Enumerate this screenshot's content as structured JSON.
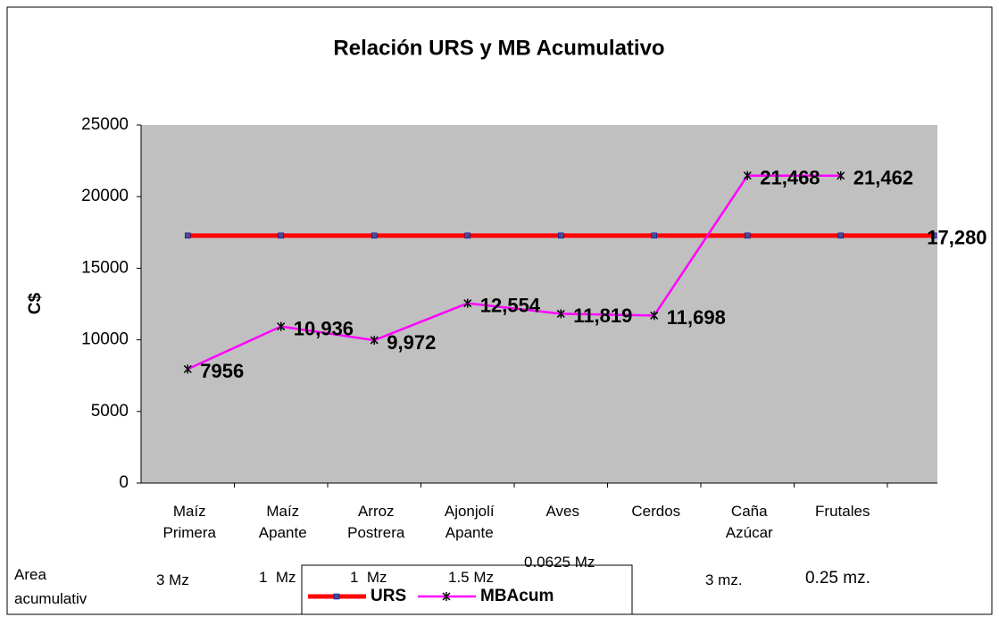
{
  "chart_data": {
    "type": "line",
    "title": "Relación URS y MB Acumulativo",
    "y_label": "C$",
    "categories": [
      "Maíz\nPrimera",
      "Maíz\nApante",
      "Arroz\nPostrera",
      "Ajonjolí\nApante",
      "Aves",
      "Cerdos",
      "Caña\nAzúcar",
      "Frutales",
      null
    ],
    "series": [
      {
        "name": "URS",
        "color": "#ff0000",
        "values": [
          17280,
          17280,
          17280,
          17280,
          17280,
          17280,
          17280,
          17280,
          17280
        ],
        "value_labels": [
          null,
          null,
          null,
          null,
          null,
          null,
          null,
          null,
          "17,280"
        ]
      },
      {
        "name": "MBAcum",
        "color": "#ff00ff",
        "values": [
          7956,
          10936,
          9972,
          12554,
          11819,
          11698,
          21468,
          21462,
          null
        ],
        "value_labels": [
          "7956",
          "10,936",
          "9,972",
          "12,554",
          "11,819",
          "11,698",
          "21,468",
          "21,462",
          null
        ]
      }
    ],
    "ylim": [
      0,
      25000
    ],
    "yticks": [
      0,
      5000,
      10000,
      15000,
      20000,
      25000
    ],
    "grid": false,
    "legend": "bottom",
    "area_label": "Area\nacumulativ",
    "areas": [
      "3 Mz",
      "1  Mz",
      "1  Mz",
      "1.5 Mz",
      "0.0625 Mz",
      null,
      "3 mz.",
      "0.25 mz."
    ]
  }
}
